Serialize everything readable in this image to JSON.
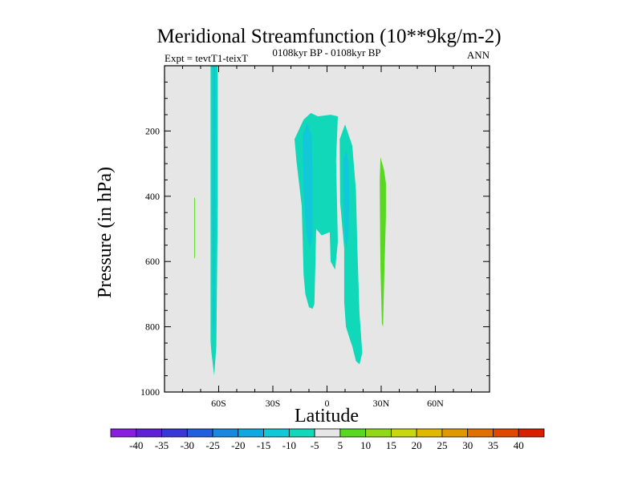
{
  "chart_data": {
    "type": "contour",
    "title": "Meridional Streamfunction (10**9kg/m-2)",
    "left_string": "Expt = tevtT1-teixT",
    "center_string": "0108kyr BP - 0108kyr BP",
    "right_string": "ANN",
    "xlabel": "Latitude",
    "ylabel": "Pressure (in hPa)",
    "xlim": [
      -90,
      90
    ],
    "ylim": [
      1000,
      0
    ],
    "x_ticks": [
      {
        "value": -60,
        "label": "60S"
      },
      {
        "value": -30,
        "label": "30S"
      },
      {
        "value": 0,
        "label": "0"
      },
      {
        "value": 30,
        "label": "30N"
      },
      {
        "value": 60,
        "label": "60N"
      }
    ],
    "y_ticks": [
      {
        "value": 200,
        "label": "200"
      },
      {
        "value": 400,
        "label": "400"
      },
      {
        "value": 600,
        "label": "600"
      },
      {
        "value": 800,
        "label": "800"
      },
      {
        "value": 1000,
        "label": "1000"
      }
    ],
    "background_color": "#e6e6e6",
    "colorbar": {
      "labels": [
        "-40",
        "-35",
        "-30",
        "-25",
        "-20",
        "-15",
        "-10",
        "-5",
        "5",
        "10",
        "15",
        "20",
        "25",
        "30",
        "35",
        "40"
      ],
      "colors": [
        "#8a1ee0",
        "#6020d8",
        "#3838d8",
        "#2060e0",
        "#1888e0",
        "#10a8e0",
        "#10c8d8",
        "#10d8b8",
        "#e6e6e6",
        "#58d820",
        "#90d818",
        "#c8d810",
        "#e0b800",
        "#e09800",
        "#e07000",
        "#e04800",
        "#d82000"
      ]
    },
    "regions": [
      {
        "name": "sh-high-lat-cell",
        "value": -7,
        "color": "#10d8b8",
        "points": [
          [
            -64.5,
            0
          ],
          [
            -60.5,
            0
          ],
          [
            -60.5,
            425
          ],
          [
            -61.3,
            860
          ],
          [
            -62.5,
            950
          ],
          [
            -64,
            880
          ],
          [
            -64.5,
            845
          ],
          [
            -64.5,
            430
          ]
        ]
      },
      {
        "name": "sh-high-lat-core",
        "value": -12,
        "color": "#10c8d8",
        "points": [
          [
            -63.2,
            0
          ],
          [
            -61.8,
            0
          ],
          [
            -61.8,
            400
          ],
          [
            -62.2,
            780
          ],
          [
            -62.6,
            830
          ],
          [
            -63.3,
            780
          ],
          [
            -63.5,
            400
          ]
        ]
      },
      {
        "name": "thin-positive-line",
        "value": 5,
        "color": "#58d820",
        "points": [
          [
            -73.5,
            405
          ],
          [
            -73.1,
            405
          ],
          [
            -73.1,
            590
          ],
          [
            -73.5,
            590
          ]
        ]
      },
      {
        "name": "tropical-south-cell",
        "value": -7,
        "color": "#10d8b8",
        "points": [
          [
            -18,
            225
          ],
          [
            -13,
            165
          ],
          [
            -9,
            145
          ],
          [
            -5,
            155
          ],
          [
            2,
            150
          ],
          [
            6,
            155
          ],
          [
            5,
            290
          ],
          [
            6,
            540
          ],
          [
            4.5,
            625
          ],
          [
            2,
            600
          ],
          [
            1.5,
            510
          ],
          [
            -3,
            520
          ],
          [
            -6,
            500
          ],
          [
            -7,
            730
          ],
          [
            -8,
            745
          ],
          [
            -10,
            740
          ],
          [
            -12,
            700
          ],
          [
            -13,
            640
          ],
          [
            -14,
            430
          ],
          [
            -17,
            290
          ]
        ]
      },
      {
        "name": "tropical-south-core",
        "value": -12,
        "color": "#10c8d8",
        "points": [
          [
            -13.5,
            215
          ],
          [
            -11,
            175
          ],
          [
            -8.5,
            215
          ],
          [
            -8,
            330
          ],
          [
            -8,
            520
          ],
          [
            -9.5,
            560
          ],
          [
            -11.5,
            510
          ],
          [
            -13,
            380
          ]
        ]
      },
      {
        "name": "tropical-north-cell",
        "value": -7,
        "color": "#10d8b8",
        "points": [
          [
            7,
            225
          ],
          [
            10,
            180
          ],
          [
            11.5,
            205
          ],
          [
            14,
            245
          ],
          [
            16,
            380
          ],
          [
            16.8,
            560
          ],
          [
            18,
            760
          ],
          [
            19.5,
            880
          ],
          [
            18,
            915
          ],
          [
            16,
            905
          ],
          [
            14,
            860
          ],
          [
            13,
            845
          ],
          [
            10.5,
            800
          ],
          [
            9.5,
            725
          ],
          [
            9.5,
            560
          ],
          [
            7.3,
            420
          ]
        ]
      },
      {
        "name": "tropical-north-core",
        "value": -12,
        "color": "#10c8d8",
        "points": [
          [
            9.2,
            285
          ],
          [
            10.8,
            260
          ],
          [
            12,
            300
          ],
          [
            12.4,
            400
          ],
          [
            11.9,
            520
          ],
          [
            10.5,
            560
          ],
          [
            9.5,
            480
          ],
          [
            9.2,
            380
          ]
        ]
      },
      {
        "name": "nh-positive-cell",
        "value": 7,
        "color": "#58d820",
        "points": [
          [
            29.6,
            280
          ],
          [
            31.6,
            320
          ],
          [
            32.6,
            360
          ],
          [
            32.6,
            460
          ],
          [
            31.8,
            620
          ],
          [
            31,
            800
          ],
          [
            30.4,
            790
          ],
          [
            29.6,
            620
          ],
          [
            29.3,
            440
          ],
          [
            29.2,
            350
          ]
        ]
      }
    ]
  }
}
